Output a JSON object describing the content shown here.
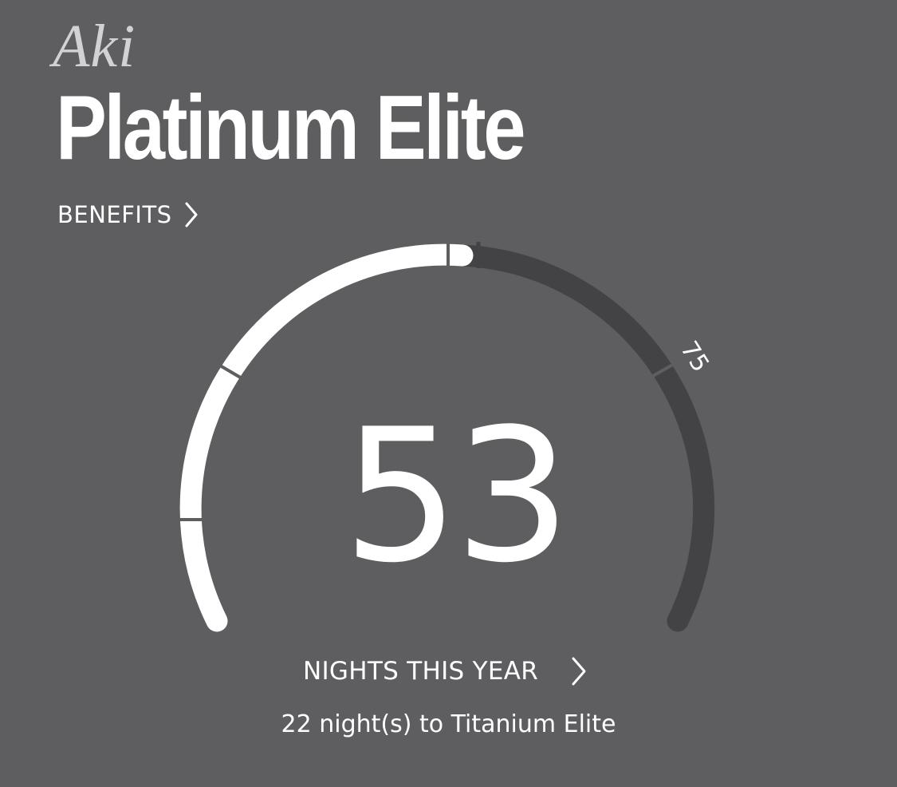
{
  "header": {
    "member_name": "Aki",
    "tier_name": "Platinum Elite"
  },
  "benefits": {
    "label": "BENEFITS",
    "icon": "chevron-right-icon"
  },
  "gauge": {
    "nights": "53",
    "next_tier_threshold_label": "75",
    "nights_value": 53,
    "next_tier_threshold": 75,
    "progress_color": "#ffffff",
    "remaining_color": "#434345"
  },
  "nights_link": {
    "label": "NIGHTS THIS YEAR",
    "icon": "chevron-right-icon"
  },
  "status": {
    "to_next_tier": "22 night(s) to Titanium Elite"
  },
  "colors": {
    "background": "#5e5e60",
    "text": "#ffffff",
    "name_text": "#d2d2d4"
  }
}
